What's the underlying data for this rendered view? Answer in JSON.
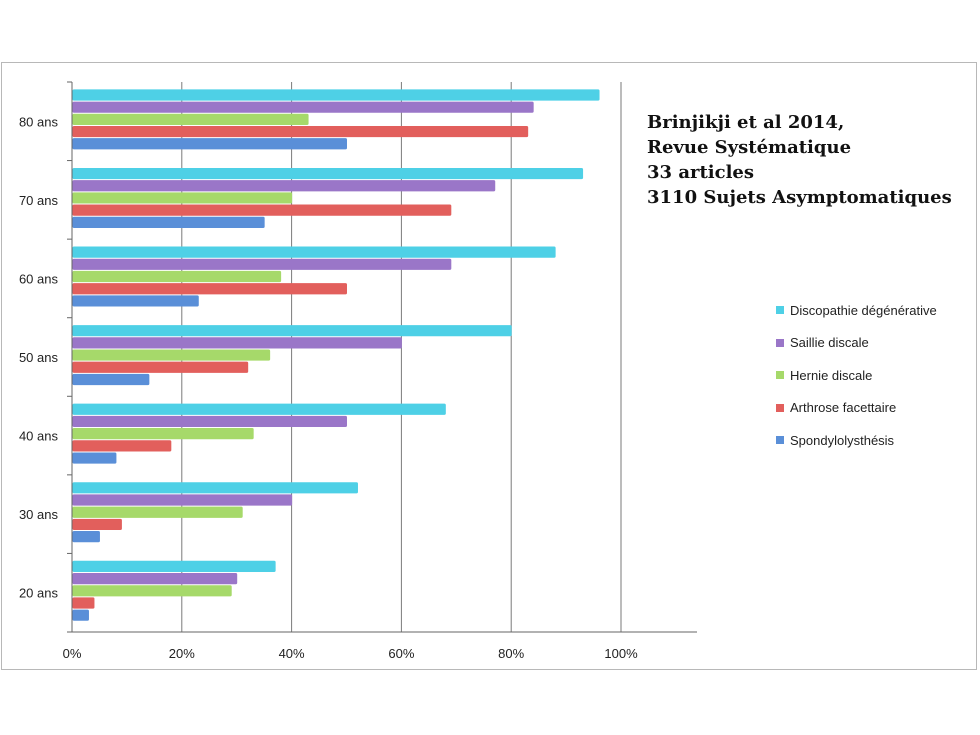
{
  "chart_data": {
    "type": "bar",
    "orientation": "horizontal",
    "categories": [
      "20 ans",
      "30 ans",
      "40 ans",
      "50 ans",
      "60 ans",
      "70 ans",
      "80 ans"
    ],
    "series": [
      {
        "name": "Spondylolysthésis",
        "color": "#5a8fd8",
        "values": [
          3,
          5,
          8,
          14,
          23,
          35,
          50
        ]
      },
      {
        "name": "Arthrose facettaire",
        "color": "#e25f5c",
        "values": [
          4,
          9,
          18,
          32,
          50,
          69,
          83
        ]
      },
      {
        "name": "Hernie discale",
        "color": "#a6d96a",
        "values": [
          29,
          31,
          33,
          36,
          38,
          40,
          43
        ]
      },
      {
        "name": "Saillie discale",
        "color": "#9a76c8",
        "values": [
          30,
          40,
          50,
          60,
          69,
          77,
          84
        ]
      },
      {
        "name": "Discopathie dégénérative",
        "color": "#4ed0e6",
        "values": [
          37,
          52,
          68,
          80,
          88,
          93,
          96
        ]
      }
    ],
    "xlim": [
      0,
      100
    ],
    "xticks": [
      "0%",
      "20%",
      "40%",
      "60%",
      "80%",
      "100%"
    ],
    "grid": true,
    "legend_position": "right",
    "legend_order": [
      "Discopathie dégénérative",
      "Saillie discale",
      "Hernie discale",
      "Arthrose facettaire",
      "Spondylolysthésis"
    ],
    "annotation": [
      "Brinjikji et al 2014,",
      "Revue Systématique",
      "33 articles",
      "3110 Sujets Asymptomatiques"
    ]
  }
}
